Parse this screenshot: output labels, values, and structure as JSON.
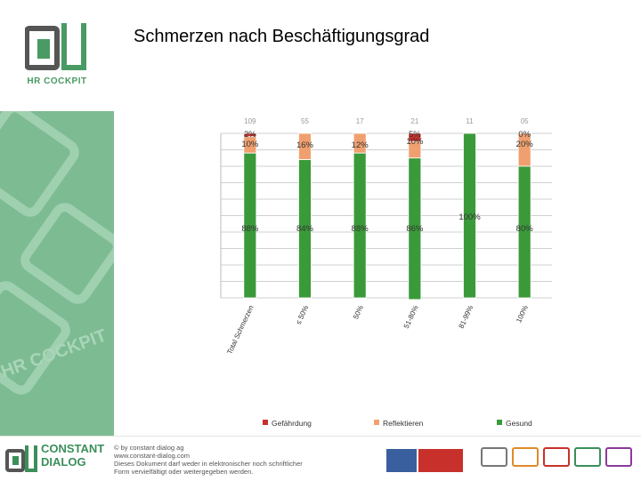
{
  "title": "Schmerzen nach Beschäftigungsgrad",
  "brand": {
    "name": "HR COCKPIT"
  },
  "footer": {
    "brand_line1": "CONSTANT",
    "brand_line2": "DIALOG",
    "copyright": "© by constant dialog ag",
    "website": "www.constant-dialog.com",
    "notice_line1": "Dieses Dokument darf weder in elektronischer noch schriftlicher",
    "notice_line2": "Form vervielfältigt oder weitergegeben werden."
  },
  "colors": {
    "gefaehrdung": "#c8312b",
    "reflektieren": "#f0a070",
    "gesund": "#3a9a3a"
  },
  "chart_data": {
    "type": "bar",
    "stacked": true,
    "categories": [
      "Total Schmerzen",
      "≤ 50%",
      "50%",
      "51-80%",
      "81-99%",
      "100%"
    ],
    "n_labels": [
      "109",
      "55",
      "17",
      "21",
      "11",
      "05"
    ],
    "series": [
      {
        "name": "Gefährdung",
        "values": [
          2,
          0,
          0,
          5,
          0,
          0
        ],
        "labels": [
          "2%",
          "",
          "",
          "5%",
          "",
          "0%"
        ]
      },
      {
        "name": "Reflektieren",
        "values": [
          10,
          16,
          12,
          10,
          0,
          20
        ],
        "labels": [
          "10%",
          "16%",
          "12%",
          "10%",
          "",
          "20%"
        ]
      },
      {
        "name": "Gesund",
        "values": [
          88,
          84,
          88,
          86,
          100,
          80
        ],
        "labels": [
          "88%",
          "84%",
          "88%",
          "86%",
          "100%",
          "80%"
        ]
      }
    ],
    "ylim": [
      0,
      100
    ],
    "grid": true,
    "legend": "bottom"
  }
}
